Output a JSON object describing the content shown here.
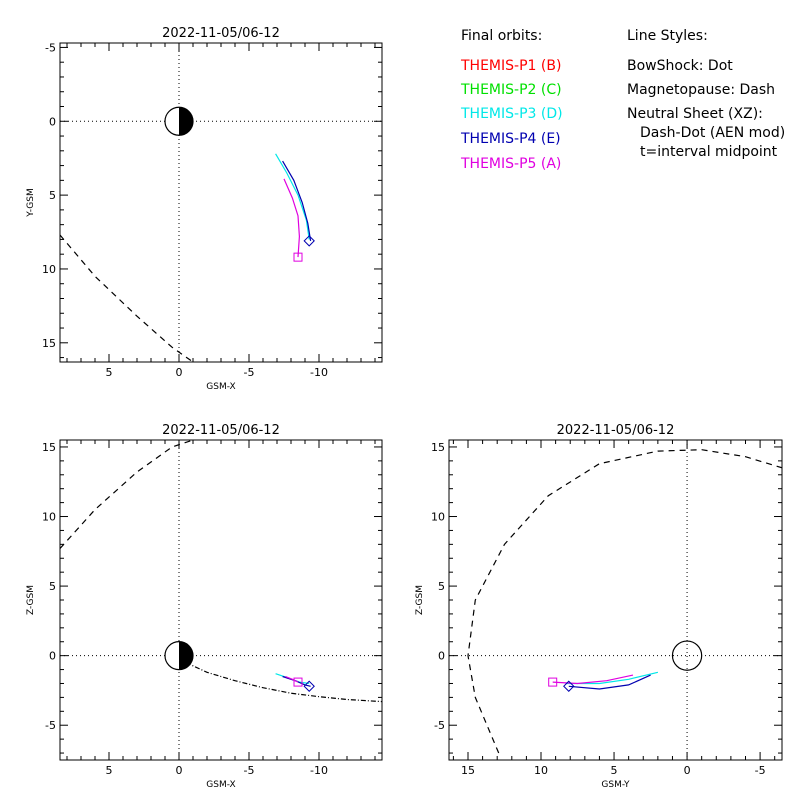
{
  "legend": {
    "orbits_header": "Final orbits:",
    "probes": [
      {
        "label": "THEMIS-P1 (B)",
        "color": "#ff0000"
      },
      {
        "label": "THEMIS-P2 (C)",
        "color": "#00e000"
      },
      {
        "label": "THEMIS-P3 (D)",
        "color": "#00e8e8"
      },
      {
        "label": "THEMIS-P4 (E)",
        "color": "#0000b0"
      },
      {
        "label": "THEMIS-P5 (A)",
        "color": "#e000e0"
      }
    ],
    "styles_header": "Line Styles:",
    "styles": [
      "BowShock: Dot",
      "Magnetopause: Dash",
      "Neutral Sheet (XZ):",
      "Dash-Dot (AEN mod)",
      "t=interval midpoint"
    ]
  },
  "chart_data": [
    {
      "type": "line",
      "title": "2022-11-05/06-12",
      "xlabel": "GSM-X",
      "ylabel": "Y-GSM",
      "xlim": [
        8.5,
        -14.5
      ],
      "ylim": [
        16.3,
        -5.3
      ],
      "xticks": [
        "5",
        "0",
        "-5",
        "-10"
      ],
      "yticks": [
        "-5",
        "0",
        "5",
        "10",
        "15"
      ],
      "series": [
        {
          "color": "#00e8e8",
          "x": [
            -6.9,
            -7.7,
            -8.5,
            -9.1,
            -9.3
          ],
          "y": [
            2.2,
            3.5,
            5.0,
            6.7,
            8.0
          ]
        },
        {
          "color": "#0000b0",
          "x": [
            -7.4,
            -8.2,
            -8.8,
            -9.2,
            -9.4
          ],
          "y": [
            2.7,
            4.0,
            5.5,
            6.9,
            8.1
          ]
        },
        {
          "color": "#e000e0",
          "x": [
            -7.5,
            -8.1,
            -8.5,
            -8.6,
            -8.5
          ],
          "y": [
            3.9,
            5.2,
            6.4,
            7.8,
            9.2
          ]
        },
        {
          "color": "#000000",
          "dash": "dash",
          "x": [
            8.5,
            6.0,
            3.0,
            0.5,
            -1.0
          ],
          "y": [
            7.7,
            10.5,
            13.2,
            15.3,
            16.3
          ]
        }
      ],
      "markers": [
        {
          "shape": "square",
          "color": "#e000e0",
          "x": -8.5,
          "y": 9.2
        },
        {
          "shape": "diamond",
          "color": "#0000b0",
          "x": -9.3,
          "y": 8.1
        }
      ],
      "earth": true
    },
    {
      "type": "line",
      "title": "2022-11-05/06-12",
      "xlabel": "GSM-X",
      "ylabel": "Z-GSM",
      "xlim": [
        8.5,
        -14.5
      ],
      "ylim": [
        -7.5,
        15.5
      ],
      "xticks": [
        "5",
        "0",
        "-5",
        "-10"
      ],
      "yticks": [
        "-5",
        "0",
        "5",
        "10",
        "15"
      ],
      "series": [
        {
          "color": "#00e8e8",
          "x": [
            -6.9,
            -7.8,
            -8.6,
            -9.3
          ],
          "y": [
            -1.3,
            -1.6,
            -1.9,
            -2.0
          ]
        },
        {
          "color": "#0000b0",
          "x": [
            -7.4,
            -8.3,
            -9.0,
            -9.4
          ],
          "y": [
            -1.5,
            -1.8,
            -2.1,
            -2.2
          ]
        },
        {
          "color": "#e000e0",
          "x": [
            -7.6,
            -8.1,
            -8.5
          ],
          "y": [
            -1.5,
            -1.7,
            -1.9
          ]
        },
        {
          "color": "#000000",
          "dash": "dash",
          "x": [
            8.5,
            6.0,
            3.0,
            0.5,
            -1.0
          ],
          "y": [
            7.7,
            10.5,
            13.2,
            15.0,
            15.5
          ]
        },
        {
          "color": "#000000",
          "dash": "dashdot",
          "x": [
            -0.5,
            -2.0,
            -4.0,
            -6.0,
            -8.0,
            -10.0,
            -12.0,
            -14.5
          ],
          "y": [
            -0.5,
            -1.2,
            -1.8,
            -2.3,
            -2.7,
            -2.95,
            -3.15,
            -3.3
          ]
        }
      ],
      "markers": [
        {
          "shape": "square",
          "color": "#e000e0",
          "x": -8.5,
          "y": -1.9
        },
        {
          "shape": "diamond",
          "color": "#0000b0",
          "x": -9.3,
          "y": -2.2
        }
      ],
      "earth": true
    },
    {
      "type": "line",
      "title": "2022-11-05/06-12",
      "xlabel": "GSM-Y",
      "ylabel": "Z-GSM",
      "xlim": [
        16.3,
        -6.5
      ],
      "ylim": [
        -7.5,
        15.5
      ],
      "xticks": [
        "15",
        "10",
        "5",
        "0",
        "-5"
      ],
      "yticks": [
        "-5",
        "0",
        "5",
        "10",
        "15"
      ],
      "series": [
        {
          "color": "#00e8e8",
          "x": [
            8.3,
            6.0,
            4.0,
            2.0
          ],
          "y": [
            -2.0,
            -2.0,
            -1.7,
            -1.2
          ]
        },
        {
          "color": "#0000b0",
          "x": [
            8.1,
            6.0,
            4.0,
            2.5
          ],
          "y": [
            -2.2,
            -2.4,
            -2.1,
            -1.4
          ]
        },
        {
          "color": "#e000e0",
          "x": [
            9.2,
            7.5,
            5.5,
            3.7
          ],
          "y": [
            -1.9,
            -2.0,
            -1.8,
            -1.4
          ]
        },
        {
          "color": "#000000",
          "dash": "dash",
          "x": [
            12.9,
            14.5,
            15.0,
            14.5,
            12.5,
            9.5,
            6.0,
            2.0,
            -1.0,
            -4.0,
            -6.5
          ],
          "y": [
            -7.0,
            -3.0,
            0.0,
            4.0,
            8.0,
            11.5,
            13.8,
            14.7,
            14.8,
            14.3,
            13.5
          ]
        }
      ],
      "markers": [
        {
          "shape": "square",
          "color": "#e000e0",
          "x": 9.2,
          "y": -1.9
        },
        {
          "shape": "diamond",
          "color": "#0000b0",
          "x": 8.1,
          "y": -2.2
        }
      ],
      "earth": false
    }
  ]
}
